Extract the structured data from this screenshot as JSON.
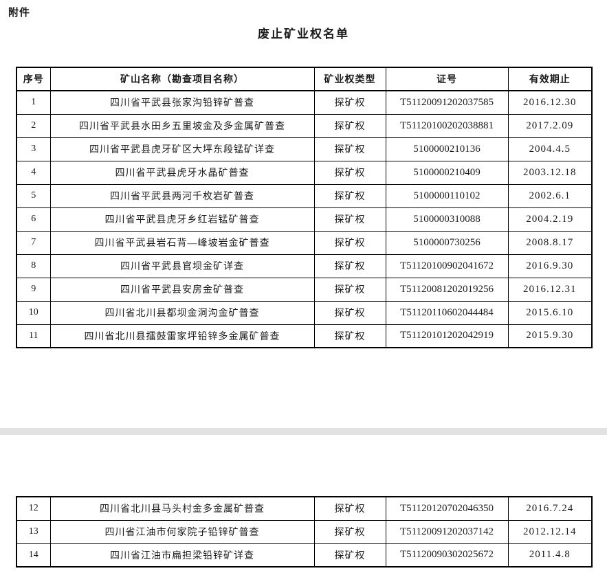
{
  "page": {
    "attachment_label": "附件",
    "title": "废止矿业权名单"
  },
  "colors": {
    "border": "#000000",
    "text": "#1a1a1a",
    "separator_band": "#e2e2e2",
    "background": "#ffffff"
  },
  "table": {
    "columns": [
      "序号",
      "矿山名称（勘查项目名称）",
      "矿业权类型",
      "证号",
      "有效期止"
    ],
    "page1_rows": [
      {
        "no": "1",
        "name": "四川省平武县张家沟铅锌矿普查",
        "type": "探矿权",
        "cert": "T51120091202037585",
        "expiry": "2016.12.30"
      },
      {
        "no": "2",
        "name": "四川省平武县水田乡五里坡金及多金属矿普查",
        "type": "探矿权",
        "cert": "T51120100202038881",
        "expiry": "2017.2.09"
      },
      {
        "no": "3",
        "name": "四川省平武县虎牙矿区大坪东段锰矿详查",
        "type": "探矿权",
        "cert": "5100000210136",
        "expiry": "2004.4.5"
      },
      {
        "no": "4",
        "name": "四川省平武县虎牙水晶矿普查",
        "type": "探矿权",
        "cert": "5100000210409",
        "expiry": "2003.12.18"
      },
      {
        "no": "5",
        "name": "四川省平武县两河千枚岩矿普查",
        "type": "探矿权",
        "cert": "5100000110102",
        "expiry": "2002.6.1"
      },
      {
        "no": "6",
        "name": "四川省平武县虎牙乡红岩锰矿普查",
        "type": "探矿权",
        "cert": "5100000310088",
        "expiry": "2004.2.19"
      },
      {
        "no": "7",
        "name": "四川省平武县岩石背—峰坡岩金矿普查",
        "type": "探矿权",
        "cert": "5100000730256",
        "expiry": "2008.8.17"
      },
      {
        "no": "8",
        "name": "四川省平武县官坝金矿详查",
        "type": "探矿权",
        "cert": "T51120100902041672",
        "expiry": "2016.9.30"
      },
      {
        "no": "9",
        "name": "四川省平武县安房金矿普查",
        "type": "探矿权",
        "cert": "T51120081202019256",
        "expiry": "2016.12.31"
      },
      {
        "no": "10",
        "name": "四川省北川县都坝金洞沟金矿普查",
        "type": "探矿权",
        "cert": "T51120110602044484",
        "expiry": "2015.6.10"
      },
      {
        "no": "11",
        "name": "四川省北川县擂鼓雷家坪铅锌多金属矿普查",
        "type": "探矿权",
        "cert": "T51120101202042919",
        "expiry": "2015.9.30"
      }
    ],
    "page2_rows": [
      {
        "no": "12",
        "name": "四川省北川县马头村金多金属矿普查",
        "type": "探矿权",
        "cert": "T51120120702046350",
        "expiry": "2016.7.24"
      },
      {
        "no": "13",
        "name": "四川省江油市何家院子铅锌矿普查",
        "type": "探矿权",
        "cert": "T51120091202037142",
        "expiry": "2012.12.14"
      },
      {
        "no": "14",
        "name": "四川省江油市扁担梁铅锌矿详查",
        "type": "探矿权",
        "cert": "T51120090302025672",
        "expiry": "2011.4.8"
      }
    ]
  }
}
